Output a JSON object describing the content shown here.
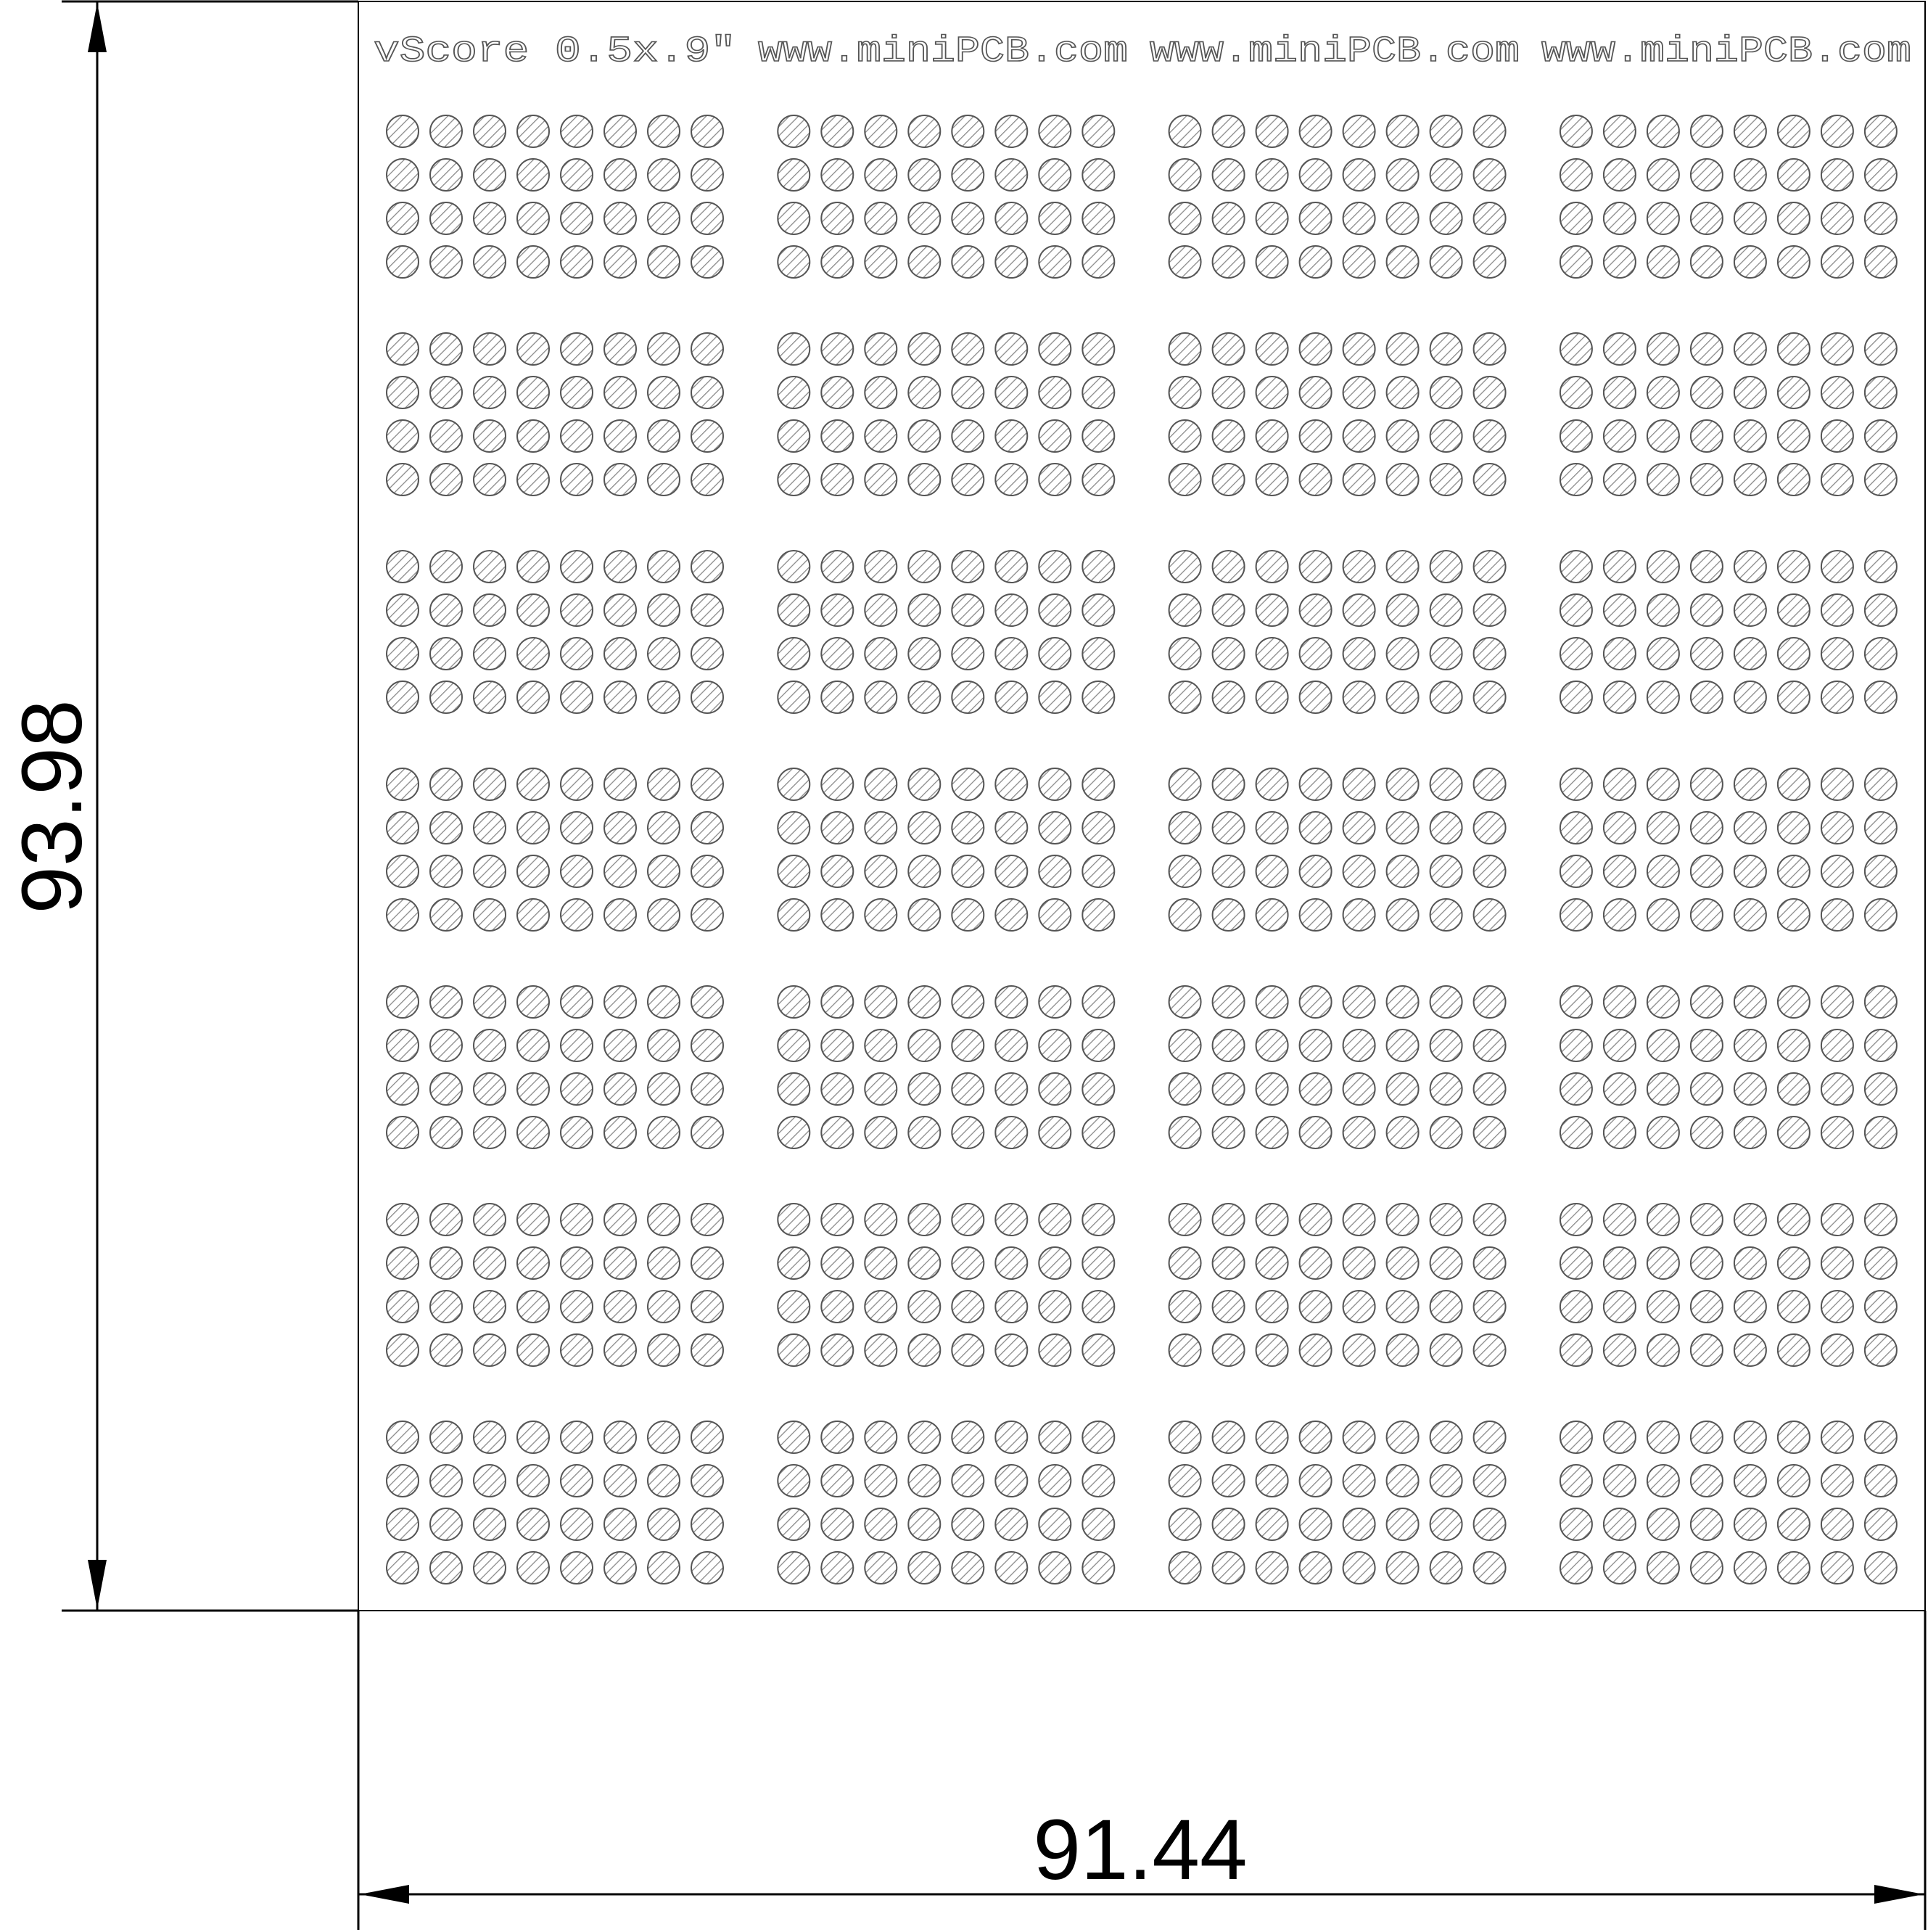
{
  "board": {
    "header_segments": [
      "vScore 0.5x.9\"",
      "www.miniPCB.com",
      "www.miniPCB.com",
      "www.miniPCB.com"
    ],
    "panel_grid": {
      "columns": 4,
      "rows": 7
    },
    "hole_grid_per_panel": {
      "columns": 8,
      "rows": 4
    },
    "line_color": "#000000",
    "hole_outline_color": "#555555",
    "hole_hatch_color": "#8a8a8a"
  },
  "dimensions": {
    "height": "93.98",
    "width": "91.44"
  }
}
